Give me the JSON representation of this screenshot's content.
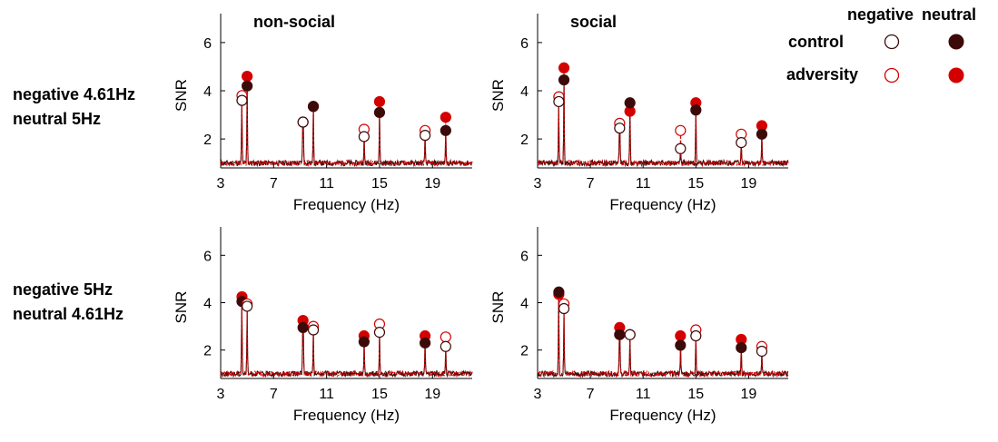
{
  "row_labels": [
    [
      "negative 4.61Hz",
      "neutral 5Hz"
    ],
    [
      "negative 5Hz",
      "neutral 4.61Hz"
    ]
  ],
  "legend": {
    "column_labels": [
      "negative",
      "neutral"
    ],
    "row_labels": [
      "control",
      "adversity"
    ],
    "colors": {
      "control": "#3d0a0a",
      "adversity": "#d40000"
    }
  },
  "chart_data": [
    {
      "type": "line",
      "title": "non-social",
      "xlabel": "Frequency (Hz)",
      "ylabel": "SNR",
      "xlim": [
        3,
        22
      ],
      "ylim": [
        0.8,
        7.2
      ],
      "xticks": [
        3,
        7,
        11,
        15,
        19
      ],
      "yticks": [
        2,
        4,
        6
      ],
      "grid": false,
      "peaks": [
        {
          "freq": 4.61,
          "control": 3.6,
          "adversity": 3.8,
          "condition": "negative"
        },
        {
          "freq": 5.0,
          "control": 4.2,
          "adversity": 4.6,
          "condition": "neutral"
        },
        {
          "freq": 9.22,
          "control": 2.7,
          "adversity": 2.7,
          "condition": "negative"
        },
        {
          "freq": 10.0,
          "control": 3.35,
          "adversity": 3.35,
          "condition": "neutral"
        },
        {
          "freq": 13.83,
          "control": 2.1,
          "adversity": 2.4,
          "condition": "negative"
        },
        {
          "freq": 15.0,
          "control": 3.1,
          "adversity": 3.55,
          "condition": "neutral"
        },
        {
          "freq": 18.44,
          "control": 2.15,
          "adversity": 2.35,
          "condition": "negative"
        },
        {
          "freq": 20.0,
          "control": 2.35,
          "adversity": 2.9,
          "condition": "neutral"
        }
      ]
    },
    {
      "type": "line",
      "title": "social",
      "xlabel": "Frequency (Hz)",
      "ylabel": "SNR",
      "xlim": [
        3,
        22
      ],
      "ylim": [
        0.8,
        7.2
      ],
      "xticks": [
        3,
        7,
        11,
        15,
        19
      ],
      "yticks": [
        2,
        4,
        6
      ],
      "grid": false,
      "peaks": [
        {
          "freq": 4.61,
          "control": 3.55,
          "adversity": 3.75,
          "condition": "negative"
        },
        {
          "freq": 5.0,
          "control": 4.45,
          "adversity": 4.95,
          "condition": "neutral"
        },
        {
          "freq": 9.22,
          "control": 2.45,
          "adversity": 2.65,
          "condition": "negative"
        },
        {
          "freq": 10.0,
          "control": 3.5,
          "adversity": 3.15,
          "condition": "neutral"
        },
        {
          "freq": 13.83,
          "control": 1.6,
          "adversity": 2.35,
          "condition": "negative"
        },
        {
          "freq": 15.0,
          "control": 3.2,
          "adversity": 3.5,
          "condition": "neutral"
        },
        {
          "freq": 18.44,
          "control": 1.85,
          "adversity": 2.2,
          "condition": "negative"
        },
        {
          "freq": 20.0,
          "control": 2.2,
          "adversity": 2.55,
          "condition": "neutral"
        }
      ]
    },
    {
      "type": "line",
      "title": "",
      "xlabel": "Frequency (Hz)",
      "ylabel": "SNR",
      "xlim": [
        3,
        22
      ],
      "ylim": [
        0.8,
        7.2
      ],
      "xticks": [
        3,
        7,
        11,
        15,
        19
      ],
      "yticks": [
        2,
        4,
        6
      ],
      "grid": false,
      "peaks": [
        {
          "freq": 4.61,
          "control": 4.05,
          "adversity": 4.25,
          "condition": "neutral"
        },
        {
          "freq": 5.0,
          "control": 3.85,
          "adversity": 3.95,
          "condition": "negative"
        },
        {
          "freq": 9.22,
          "control": 2.95,
          "adversity": 3.25,
          "condition": "neutral"
        },
        {
          "freq": 10.0,
          "control": 2.85,
          "adversity": 3.0,
          "condition": "negative"
        },
        {
          "freq": 13.83,
          "control": 2.35,
          "adversity": 2.6,
          "condition": "neutral"
        },
        {
          "freq": 15.0,
          "control": 2.75,
          "adversity": 3.1,
          "condition": "negative"
        },
        {
          "freq": 18.44,
          "control": 2.3,
          "adversity": 2.6,
          "condition": "neutral"
        },
        {
          "freq": 20.0,
          "control": 2.15,
          "adversity": 2.55,
          "condition": "negative"
        }
      ]
    },
    {
      "type": "line",
      "title": "",
      "xlabel": "Frequency (Hz)",
      "ylabel": "SNR",
      "xlim": [
        3,
        22
      ],
      "ylim": [
        0.8,
        7.2
      ],
      "xticks": [
        3,
        7,
        11,
        15,
        19
      ],
      "yticks": [
        2,
        4,
        6
      ],
      "grid": false,
      "peaks": [
        {
          "freq": 4.61,
          "control": 4.45,
          "adversity": 4.35,
          "condition": "neutral"
        },
        {
          "freq": 5.0,
          "control": 3.75,
          "adversity": 3.95,
          "condition": "negative"
        },
        {
          "freq": 9.22,
          "control": 2.65,
          "adversity": 2.95,
          "condition": "neutral"
        },
        {
          "freq": 10.0,
          "control": 2.65,
          "adversity": 2.65,
          "condition": "negative"
        },
        {
          "freq": 13.83,
          "control": 2.2,
          "adversity": 2.6,
          "condition": "neutral"
        },
        {
          "freq": 15.0,
          "control": 2.6,
          "adversity": 2.85,
          "condition": "negative"
        },
        {
          "freq": 18.44,
          "control": 2.1,
          "adversity": 2.45,
          "condition": "neutral"
        },
        {
          "freq": 20.0,
          "control": 1.95,
          "adversity": 2.15,
          "condition": "negative"
        }
      ]
    }
  ]
}
